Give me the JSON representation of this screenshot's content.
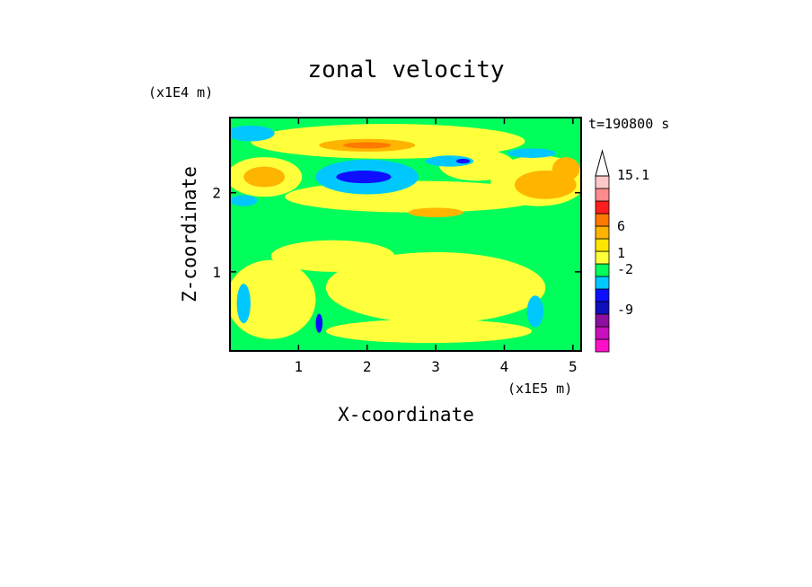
{
  "chart_data": {
    "type": "heatmap",
    "title": "zonal velocity",
    "xlabel": "X-coordinate",
    "ylabel": "Z-coordinate",
    "x_unit": "(x1E5 m)",
    "y_unit": "(x1E4 m)",
    "time_label": "t=190800 s",
    "xlim": [
      0,
      5.12
    ],
    "ylim": [
      0,
      2.95
    ],
    "x_ticks": [
      1,
      2,
      3,
      4,
      5
    ],
    "y_ticks": [
      1,
      2
    ],
    "colorbar": {
      "levels": [
        -15,
        -12,
        -9,
        -6,
        -3,
        -2,
        -1,
        0,
        1,
        2,
        3,
        6,
        9,
        12,
        15.1
      ],
      "labels": [
        "15.1",
        "6",
        "1",
        "-2",
        "-9"
      ],
      "colors": [
        "#ff0fc8",
        "#c80fbe",
        "#8c0fa0",
        "#0f0fbe",
        "#0f0fff",
        "#00c8ff",
        "#00ff5a",
        "#ffff3c",
        "#ffe600",
        "#ffb400",
        "#ff7800",
        "#ff1e1e",
        "#ff8c8c",
        "#ffc8c8"
      ]
    },
    "regions": [
      {
        "level": "1",
        "cx": 3.0,
        "cy": 0.8,
        "rx": 1.6,
        "ry": 0.45
      },
      {
        "level": "1",
        "cx": 0.6,
        "cy": 0.65,
        "rx": 0.65,
        "ry": 0.5
      },
      {
        "level": "1",
        "cx": 1.5,
        "cy": 1.2,
        "rx": 0.9,
        "ry": 0.2
      },
      {
        "level": "1",
        "cx": 2.9,
        "cy": 0.25,
        "rx": 1.5,
        "ry": 0.15
      },
      {
        "level": "1",
        "cx": 2.7,
        "cy": 1.95,
        "rx": 1.9,
        "ry": 0.2
      },
      {
        "level": "1",
        "cx": 2.3,
        "cy": 2.65,
        "rx": 2.0,
        "ry": 0.22
      },
      {
        "level": "1",
        "cx": 4.5,
        "cy": 2.15,
        "rx": 0.7,
        "ry": 0.32
      },
      {
        "level": "1",
        "cx": 3.6,
        "cy": 2.35,
        "rx": 0.55,
        "ry": 0.2
      },
      {
        "level": "1",
        "cx": 0.5,
        "cy": 2.2,
        "rx": 0.55,
        "ry": 0.25
      },
      {
        "level": "2",
        "cx": 0.5,
        "cy": 2.2,
        "rx": 0.3,
        "ry": 0.13
      },
      {
        "level": "2",
        "cx": 2.0,
        "cy": 2.6,
        "rx": 0.7,
        "ry": 0.08
      },
      {
        "level": "2",
        "cx": 3.0,
        "cy": 1.75,
        "rx": 0.4,
        "ry": 0.06
      },
      {
        "level": "2",
        "cx": 4.6,
        "cy": 2.1,
        "rx": 0.45,
        "ry": 0.18
      },
      {
        "level": "2",
        "cx": 4.9,
        "cy": 2.3,
        "rx": 0.2,
        "ry": 0.15
      },
      {
        "level": "3",
        "cx": 2.0,
        "cy": 2.6,
        "rx": 0.35,
        "ry": 0.04
      },
      {
        "level": "-1",
        "cx": 2.0,
        "cy": 2.2,
        "rx": 0.75,
        "ry": 0.22
      },
      {
        "level": "-1",
        "cx": 0.3,
        "cy": 2.75,
        "rx": 0.35,
        "ry": 0.1
      },
      {
        "level": "-1",
        "cx": 3.2,
        "cy": 2.4,
        "rx": 0.35,
        "ry": 0.07
      },
      {
        "level": "-1",
        "cx": 4.4,
        "cy": 2.5,
        "rx": 0.35,
        "ry": 0.06
      },
      {
        "level": "-1",
        "cx": 0.2,
        "cy": 1.9,
        "rx": 0.2,
        "ry": 0.07
      },
      {
        "level": "-3",
        "cx": 1.95,
        "cy": 2.2,
        "rx": 0.4,
        "ry": 0.08
      },
      {
        "level": "-3",
        "cx": 3.4,
        "cy": 2.4,
        "rx": 0.1,
        "ry": 0.03
      },
      {
        "level": "-3",
        "cx": 1.3,
        "cy": 0.35,
        "rx": 0.05,
        "ry": 0.12
      },
      {
        "level": "-1",
        "cx": 0.2,
        "cy": 0.6,
        "rx": 0.1,
        "ry": 0.25
      },
      {
        "level": "-1",
        "cx": 4.45,
        "cy": 0.5,
        "rx": 0.12,
        "ry": 0.2
      }
    ]
  }
}
